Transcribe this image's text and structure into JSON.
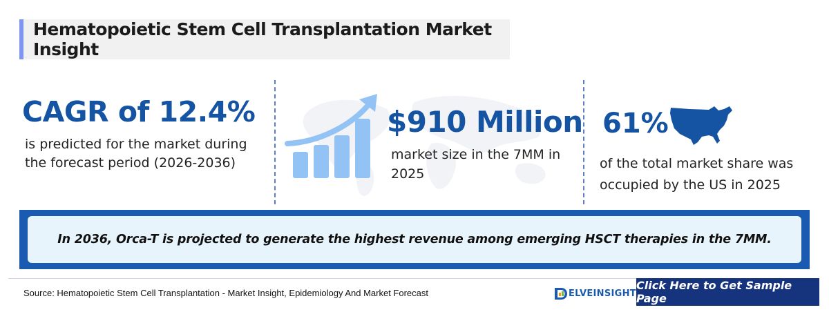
{
  "header": {
    "title": "Hematopoietic Stem Cell Transplantation Market Insight"
  },
  "stats": {
    "cagr": {
      "value": "CAGR of 12.4%",
      "description": "is predicted for the market during the forecast period (2026-2036)"
    },
    "market_size": {
      "value": "$910 Million",
      "description": "market size in the 7MM in 2025"
    },
    "us_share": {
      "value": "61%",
      "description": "of the total market share was occupied by the US in 2025"
    }
  },
  "banner": {
    "text": "In 2036, Orca-T is projected to generate the highest revenue among emerging HSCT therapies in the 7MM."
  },
  "footer": {
    "source": "Source: Hematopoietic Stem Cell Transplantation - Market Insight, Epidemiology And Market Forecast",
    "logo_text": "ELVEINSIGHT",
    "cta_label": "Click Here to Get Sample Page"
  },
  "colors": {
    "accent": "#1553a3",
    "banner": "#1a5ab0",
    "cta": "#16347e",
    "title_bar": "#7e95f2"
  },
  "icons": [
    "growth-chart-icon",
    "us-map-icon",
    "world-map-background",
    "delveinsight-logo-icon"
  ]
}
